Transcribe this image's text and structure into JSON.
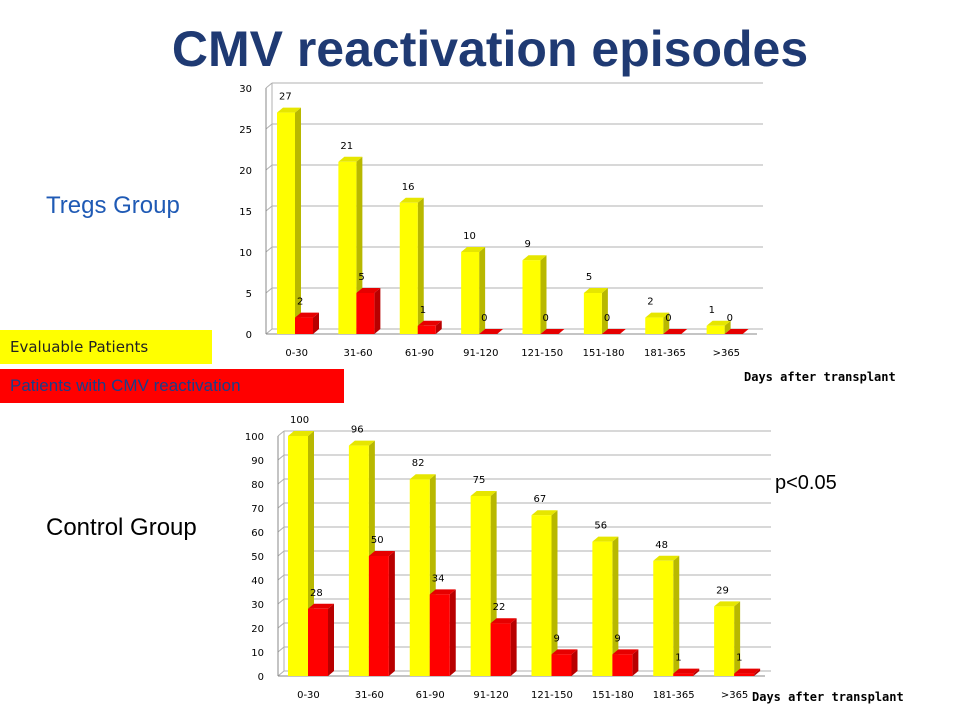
{
  "title": "CMV reactivation episodes",
  "groups": {
    "tregs_label": "Tregs Group",
    "control_label": "Control Group"
  },
  "legend": {
    "evaluable": "Evaluable Patients",
    "cmv": "Patients with CMV reactivation"
  },
  "p_value": "p<0.05",
  "colors": {
    "evaluable": "#ffff00",
    "cmv": "#ff0000",
    "title": "#1f3a73"
  },
  "chart_data": [
    {
      "type": "bar",
      "categories": [
        "0-30",
        "31-60",
        "61-90",
        "91-120",
        "121-150",
        "151-180",
        "181-365",
        ">365"
      ],
      "series": [
        {
          "name": "Evaluable Patients",
          "values": [
            27,
            21,
            16,
            10,
            9,
            5,
            2,
            1
          ]
        },
        {
          "name": "Patients with CMV reactivation",
          "values": [
            2,
            5,
            1,
            0,
            0,
            0,
            0,
            0
          ]
        }
      ],
      "xlabel": "Days after transplant",
      "ylabel": "",
      "ylim": [
        0,
        30
      ],
      "yticks": [
        0,
        5,
        10,
        15,
        20,
        25,
        30
      ]
    },
    {
      "type": "bar",
      "categories": [
        "0-30",
        "31-60",
        "61-90",
        "91-120",
        "121-150",
        "151-180",
        "181-365",
        ">365"
      ],
      "series": [
        {
          "name": "Evaluable Patients",
          "values": [
            100,
            96,
            82,
            75,
            67,
            56,
            48,
            29
          ]
        },
        {
          "name": "Patients with CMV reactivation",
          "values": [
            28,
            50,
            34,
            22,
            9,
            9,
            1,
            1
          ]
        }
      ],
      "xlabel": "Days after transplant",
      "ylabel": "",
      "ylim": [
        0,
        100
      ],
      "yticks": [
        0,
        10,
        20,
        30,
        40,
        50,
        60,
        70,
        80,
        90,
        100
      ]
    }
  ]
}
